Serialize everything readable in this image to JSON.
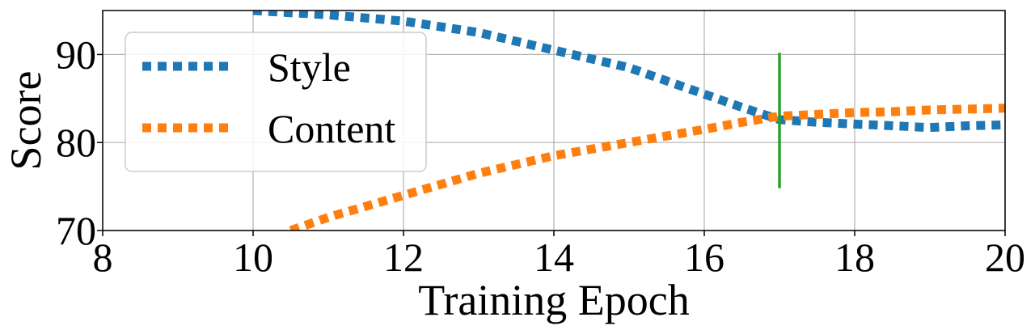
{
  "chart_data": {
    "type": "line",
    "title": "",
    "xlabel": "Training Epoch",
    "ylabel": "Score",
    "xlim": [
      8,
      20
    ],
    "ylim": [
      70,
      95
    ],
    "xticks": [
      "8",
      "10",
      "12",
      "14",
      "16",
      "18",
      "20"
    ],
    "yticks": [
      "70",
      "80",
      "90"
    ],
    "grid": true,
    "legend_position": "upper-left",
    "series": [
      {
        "name": "Style",
        "color": "#1f77b4",
        "line_style": "dotted",
        "x": [
          10,
          11,
          12,
          13,
          14,
          15,
          16,
          16.5,
          17,
          17.5,
          18,
          18.5,
          19,
          19.5,
          20
        ],
        "y": [
          95,
          94.5,
          93.8,
          92.5,
          90.5,
          88.5,
          85.5,
          84.0,
          82.6,
          82.3,
          82.1,
          81.9,
          81.7,
          81.9,
          82.0
        ]
      },
      {
        "name": "Content",
        "color": "#ff7f0e",
        "line_style": "dotted",
        "x": [
          10.5,
          11,
          12,
          13,
          14,
          15,
          16,
          16.5,
          17,
          17.5,
          18,
          18.5,
          19,
          19.5,
          20
        ],
        "y": [
          70,
          71.5,
          74.0,
          76.5,
          78.5,
          80.0,
          81.5,
          82.3,
          83.0,
          83.2,
          83.4,
          83.5,
          83.7,
          83.8,
          83.9
        ]
      }
    ],
    "annotations": [
      {
        "type": "vertical-line",
        "x": 17,
        "y_range": [
          74.8,
          90.2
        ],
        "color": "#2ca02c"
      }
    ]
  }
}
